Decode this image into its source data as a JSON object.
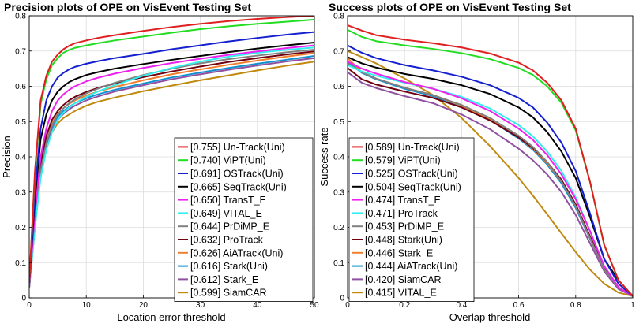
{
  "chart_data": [
    {
      "type": "line",
      "title": "Precision plots of OPE on VisEvent Testing Set",
      "xlabel": "Location error threshold",
      "ylabel": "Precision",
      "xlim": [
        0,
        50
      ],
      "ylim": [
        0,
        0.8
      ],
      "x_ticks": [
        "0",
        "10",
        "20",
        "30",
        "40",
        "50"
      ],
      "y_ticks": [
        "0",
        "0.1",
        "0.2",
        "0.3",
        "0.4",
        "0.5",
        "0.6",
        "0.7",
        "0.8"
      ],
      "grid": true,
      "legend_position": "bottom-right",
      "x": [
        0,
        1,
        2,
        3,
        4,
        5,
        6,
        7,
        8,
        10,
        12,
        15,
        20,
        25,
        30,
        35,
        40,
        45,
        50
      ],
      "series": [
        {
          "name": "Un-Track(Uni)",
          "score": "[0.755]",
          "color": "#e02020",
          "values": [
            0.04,
            0.36,
            0.56,
            0.63,
            0.67,
            0.69,
            0.705,
            0.715,
            0.722,
            0.73,
            0.737,
            0.745,
            0.757,
            0.768,
            0.777,
            0.785,
            0.791,
            0.796,
            0.8
          ]
        },
        {
          "name": "ViPT(Uni)",
          "score": "[0.740]",
          "color": "#22dd22",
          "values": [
            0.04,
            0.35,
            0.55,
            0.62,
            0.66,
            0.68,
            0.695,
            0.703,
            0.709,
            0.716,
            0.722,
            0.73,
            0.741,
            0.752,
            0.762,
            0.77,
            0.777,
            0.783,
            0.789
          ]
        },
        {
          "name": "OSTrack(Uni)",
          "score": "[0.691]",
          "color": "#1420d0",
          "values": [
            0.04,
            0.3,
            0.48,
            0.56,
            0.6,
            0.625,
            0.638,
            0.648,
            0.655,
            0.664,
            0.671,
            0.68,
            0.692,
            0.705,
            0.716,
            0.727,
            0.737,
            0.746,
            0.754
          ]
        },
        {
          "name": "SeqTrack(Uni)",
          "score": "[0.665]",
          "color": "#000000",
          "values": [
            0.04,
            0.28,
            0.45,
            0.52,
            0.56,
            0.585,
            0.6,
            0.612,
            0.62,
            0.632,
            0.64,
            0.65,
            0.663,
            0.675,
            0.686,
            0.697,
            0.707,
            0.716,
            0.724
          ]
        },
        {
          "name": "TransT_E",
          "score": "[0.650]",
          "color": "#ee22ee",
          "values": [
            0.03,
            0.24,
            0.4,
            0.48,
            0.53,
            0.56,
            0.577,
            0.59,
            0.6,
            0.614,
            0.624,
            0.636,
            0.652,
            0.666,
            0.678,
            0.689,
            0.699,
            0.708,
            0.716
          ]
        },
        {
          "name": "VITAL_E",
          "score": "[0.649]",
          "color": "#33eeee",
          "values": [
            0.03,
            0.2,
            0.34,
            0.42,
            0.47,
            0.505,
            0.525,
            0.54,
            0.552,
            0.57,
            0.585,
            0.603,
            0.63,
            0.652,
            0.67,
            0.684,
            0.695,
            0.703,
            0.71
          ]
        },
        {
          "name": "PrDiMP_E",
          "score": "[0.644]",
          "color": "#808080",
          "values": [
            0.03,
            0.21,
            0.36,
            0.44,
            0.49,
            0.52,
            0.538,
            0.552,
            0.563,
            0.58,
            0.593,
            0.61,
            0.632,
            0.65,
            0.665,
            0.677,
            0.687,
            0.696,
            0.704
          ]
        },
        {
          "name": "ProTrack",
          "score": "[0.632]",
          "color": "#700010",
          "values": [
            0.03,
            0.22,
            0.38,
            0.46,
            0.505,
            0.53,
            0.547,
            0.56,
            0.57,
            0.584,
            0.595,
            0.608,
            0.626,
            0.642,
            0.656,
            0.669,
            0.68,
            0.69,
            0.699
          ]
        },
        {
          "name": "AiATrack(Uni)",
          "score": "[0.626]",
          "color": "#f08030",
          "values": [
            0.03,
            0.22,
            0.37,
            0.45,
            0.495,
            0.522,
            0.538,
            0.55,
            0.56,
            0.574,
            0.585,
            0.598,
            0.617,
            0.634,
            0.648,
            0.661,
            0.673,
            0.684,
            0.694
          ]
        },
        {
          "name": "Stark(Uni)",
          "score": "[0.616]",
          "color": "#1090d0",
          "values": [
            0.03,
            0.21,
            0.36,
            0.44,
            0.487,
            0.514,
            0.53,
            0.542,
            0.552,
            0.566,
            0.577,
            0.59,
            0.608,
            0.625,
            0.639,
            0.652,
            0.664,
            0.675,
            0.686
          ]
        },
        {
          "name": "Stark_E",
          "score": "[0.612]",
          "color": "#9050a0",
          "values": [
            0.03,
            0.2,
            0.35,
            0.43,
            0.478,
            0.505,
            0.522,
            0.535,
            0.545,
            0.56,
            0.571,
            0.585,
            0.603,
            0.62,
            0.634,
            0.647,
            0.659,
            0.67,
            0.68
          ]
        },
        {
          "name": "SiamCAR",
          "score": "[0.599]",
          "color": "#c08a10",
          "values": [
            0.03,
            0.2,
            0.35,
            0.43,
            0.47,
            0.495,
            0.51,
            0.52,
            0.53,
            0.545,
            0.556,
            0.568,
            0.586,
            0.602,
            0.617,
            0.631,
            0.645,
            0.658,
            0.67
          ]
        }
      ]
    },
    {
      "type": "line",
      "title": "Success plots of OPE on VisEvent Testing Set",
      "xlabel": "Overlap threshold",
      "ylabel": "Success rate",
      "xlim": [
        0,
        1
      ],
      "ylim": [
        0,
        0.8
      ],
      "x_ticks": [
        "0",
        "0.2",
        "0.4",
        "0.6",
        "0.8",
        "1"
      ],
      "y_ticks": [
        "0",
        "0.1",
        "0.2",
        "0.3",
        "0.4",
        "0.5",
        "0.6",
        "0.7",
        "0.8"
      ],
      "grid": true,
      "legend_position": "bottom-left",
      "x": [
        0,
        0.05,
        0.1,
        0.2,
        0.3,
        0.4,
        0.5,
        0.6,
        0.65,
        0.7,
        0.75,
        0.8,
        0.85,
        0.9,
        0.95,
        1.0
      ],
      "series": [
        {
          "name": "Un-Track(Uni)",
          "score": "[0.589]",
          "color": "#e02020",
          "values": [
            0.773,
            0.758,
            0.745,
            0.732,
            0.722,
            0.71,
            0.693,
            0.667,
            0.645,
            0.61,
            0.56,
            0.48,
            0.33,
            0.15,
            0.05,
            0.005
          ]
        },
        {
          "name": "ViPT(Uni)",
          "score": "[0.579]",
          "color": "#22dd22",
          "values": [
            0.76,
            0.74,
            0.728,
            0.716,
            0.706,
            0.694,
            0.677,
            0.652,
            0.632,
            0.6,
            0.553,
            0.475,
            0.33,
            0.15,
            0.05,
            0.005
          ]
        },
        {
          "name": "OSTrack(Uni)",
          "score": "[0.525]",
          "color": "#1420d0",
          "values": [
            0.716,
            0.695,
            0.68,
            0.66,
            0.645,
            0.627,
            0.603,
            0.567,
            0.54,
            0.497,
            0.44,
            0.36,
            0.24,
            0.11,
            0.04,
            0.005
          ]
        },
        {
          "name": "SeqTrack(Uni)",
          "score": "[0.504]",
          "color": "#000000",
          "values": [
            0.683,
            0.665,
            0.653,
            0.635,
            0.621,
            0.603,
            0.578,
            0.54,
            0.512,
            0.47,
            0.415,
            0.34,
            0.23,
            0.11,
            0.05,
            0.005
          ]
        },
        {
          "name": "TransT_E",
          "score": "[0.474]",
          "color": "#ee22ee",
          "values": [
            0.67,
            0.65,
            0.636,
            0.612,
            0.593,
            0.566,
            0.53,
            0.48,
            0.448,
            0.405,
            0.35,
            0.28,
            0.19,
            0.09,
            0.03,
            0.005
          ]
        },
        {
          "name": "ProTrack",
          "score": "[0.471]",
          "color": "#33eeee",
          "values": [
            0.66,
            0.642,
            0.63,
            0.61,
            0.593,
            0.57,
            0.537,
            0.49,
            0.458,
            0.415,
            0.36,
            0.285,
            0.19,
            0.09,
            0.03,
            0.005
          ]
        },
        {
          "name": "PrDiMP_E",
          "score": "[0.453]",
          "color": "#808080",
          "values": [
            0.665,
            0.64,
            0.622,
            0.596,
            0.575,
            0.547,
            0.51,
            0.46,
            0.428,
            0.385,
            0.33,
            0.26,
            0.17,
            0.08,
            0.03,
            0.005
          ]
        },
        {
          "name": "Stark(Uni)",
          "score": "[0.448]",
          "color": "#700010",
          "values": [
            0.652,
            0.62,
            0.605,
            0.585,
            0.567,
            0.54,
            0.503,
            0.455,
            0.425,
            0.385,
            0.335,
            0.265,
            0.175,
            0.085,
            0.03,
            0.005
          ]
        },
        {
          "name": "Stark_E",
          "score": "[0.446]",
          "color": "#f08030",
          "values": [
            0.68,
            0.64,
            0.622,
            0.596,
            0.575,
            0.545,
            0.505,
            0.455,
            0.423,
            0.382,
            0.33,
            0.26,
            0.17,
            0.08,
            0.03,
            0.005
          ]
        },
        {
          "name": "AiATrack(Uni)",
          "score": "[0.444]",
          "color": "#1090d0",
          "values": [
            0.67,
            0.638,
            0.62,
            0.593,
            0.572,
            0.543,
            0.504,
            0.452,
            0.42,
            0.378,
            0.325,
            0.255,
            0.168,
            0.08,
            0.03,
            0.005
          ]
        },
        {
          "name": "SiamCAR",
          "score": "[0.420]",
          "color": "#9050a0",
          "values": [
            0.64,
            0.61,
            0.595,
            0.572,
            0.552,
            0.52,
            0.478,
            0.423,
            0.39,
            0.35,
            0.3,
            0.235,
            0.155,
            0.075,
            0.025,
            0.005
          ]
        },
        {
          "name": "VITAL_E",
          "score": "[0.415]",
          "color": "#c08a10",
          "values": [
            0.7,
            0.683,
            0.665,
            0.622,
            0.575,
            0.51,
            0.43,
            0.34,
            0.29,
            0.237,
            0.183,
            0.13,
            0.08,
            0.04,
            0.015,
            0.005
          ]
        }
      ]
    }
  ]
}
